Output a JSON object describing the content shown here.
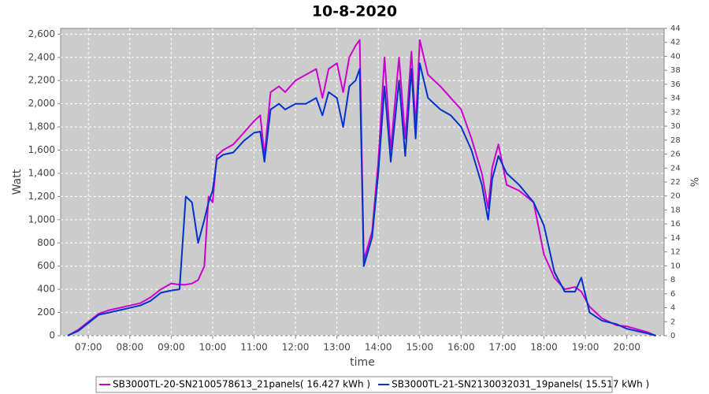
{
  "chart_data": {
    "type": "line",
    "title": "10-8-2020",
    "x_label": "time",
    "y_label": "Watt",
    "y2_label": "%",
    "x": [
      6.5,
      6.75,
      7.0,
      7.25,
      7.5,
      7.75,
      8.0,
      8.25,
      8.5,
      8.75,
      9.0,
      9.2,
      9.35,
      9.5,
      9.65,
      9.8,
      9.9,
      10.0,
      10.1,
      10.25,
      10.5,
      10.75,
      11.0,
      11.15,
      11.25,
      11.4,
      11.6,
      11.75,
      12.0,
      12.25,
      12.5,
      12.65,
      12.8,
      13.0,
      13.15,
      13.3,
      13.45,
      13.55,
      13.65,
      13.85,
      14.0,
      14.15,
      14.3,
      14.5,
      14.65,
      14.8,
      14.9,
      15.0,
      15.2,
      15.5,
      15.75,
      16.0,
      16.25,
      16.5,
      16.65,
      16.75,
      16.9,
      17.1,
      17.4,
      17.75,
      18.0,
      18.25,
      18.5,
      18.75,
      18.9,
      19.1,
      19.4,
      19.75,
      20.0,
      20.5,
      20.7
    ],
    "series": [
      {
        "name": "SB3000TL-20-SN2100578613_21panels( 16.427 kWh )",
        "color": "#cc00cc",
        "values": [
          0,
          50,
          120,
          190,
          220,
          240,
          260,
          280,
          330,
          400,
          450,
          440,
          440,
          450,
          480,
          600,
          1200,
          1150,
          1550,
          1600,
          1650,
          1750,
          1850,
          1900,
          1550,
          2100,
          2150,
          2100,
          2200,
          2250,
          2300,
          2050,
          2300,
          2350,
          2100,
          2400,
          2500,
          2550,
          650,
          900,
          1500,
          2400,
          1600,
          2400,
          1700,
          2450,
          1800,
          2550,
          2250,
          2150,
          2050,
          1950,
          1700,
          1400,
          1100,
          1450,
          1650,
          1300,
          1250,
          1150,
          700,
          500,
          400,
          420,
          380,
          250,
          150,
          90,
          80,
          30,
          0
        ]
      },
      {
        "name": "SB3000TL-21-SN2130032031_19panels( 15.517 kWh )",
        "color": "#0033cc",
        "values": [
          0,
          40,
          110,
          180,
          200,
          220,
          240,
          260,
          300,
          370,
          390,
          400,
          1200,
          1150,
          800,
          1000,
          1150,
          1250,
          1520,
          1560,
          1580,
          1680,
          1750,
          1760,
          1500,
          1950,
          2000,
          1950,
          2000,
          2000,
          2050,
          1900,
          2100,
          2050,
          1800,
          2150,
          2200,
          2300,
          600,
          850,
          1400,
          2150,
          1500,
          2200,
          1550,
          2300,
          1700,
          2350,
          2050,
          1950,
          1900,
          1800,
          1600,
          1300,
          1000,
          1350,
          1550,
          1400,
          1300,
          1150,
          950,
          550,
          380,
          380,
          500,
          200,
          130,
          100,
          60,
          20,
          0
        ]
      }
    ],
    "xlim": [
      6.33,
      20.9
    ],
    "xticks": [
      {
        "value": 7,
        "label": "07:00"
      },
      {
        "value": 8,
        "label": "08:00"
      },
      {
        "value": 9,
        "label": "09:00"
      },
      {
        "value": 10,
        "label": "10:00"
      },
      {
        "value": 11,
        "label": "11:00"
      },
      {
        "value": 12,
        "label": "12:00"
      },
      {
        "value": 13,
        "label": "13:00"
      },
      {
        "value": 14,
        "label": "14:00"
      },
      {
        "value": 15,
        "label": "15:00"
      },
      {
        "value": 16,
        "label": "16:00"
      },
      {
        "value": 17,
        "label": "17:00"
      },
      {
        "value": 18,
        "label": "18:00"
      },
      {
        "value": 19,
        "label": "19:00"
      },
      {
        "value": 20,
        "label": "20:00"
      }
    ],
    "ylim": [
      0,
      2650
    ],
    "yticks": [
      0,
      200,
      400,
      600,
      800,
      {
        "value": 1000,
        "label": "1,000"
      },
      {
        "value": 1200,
        "label": "1,200"
      },
      {
        "value": 1400,
        "label": "1,400"
      },
      {
        "value": 1600,
        "label": "1,600"
      },
      {
        "value": 1800,
        "label": "1,800"
      },
      {
        "value": 2000,
        "label": "2,000"
      },
      {
        "value": 2200,
        "label": "2,200"
      },
      {
        "value": 2400,
        "label": "2,400"
      },
      {
        "value": 2600,
        "label": "2,600"
      }
    ],
    "y2lim": [
      0,
      44
    ],
    "y2ticks": [
      0,
      2,
      4,
      6,
      8,
      10,
      12,
      14,
      16,
      18,
      20,
      22,
      24,
      26,
      28,
      30,
      32,
      34,
      36,
      38,
      40,
      42,
      44
    ],
    "grid": true
  }
}
